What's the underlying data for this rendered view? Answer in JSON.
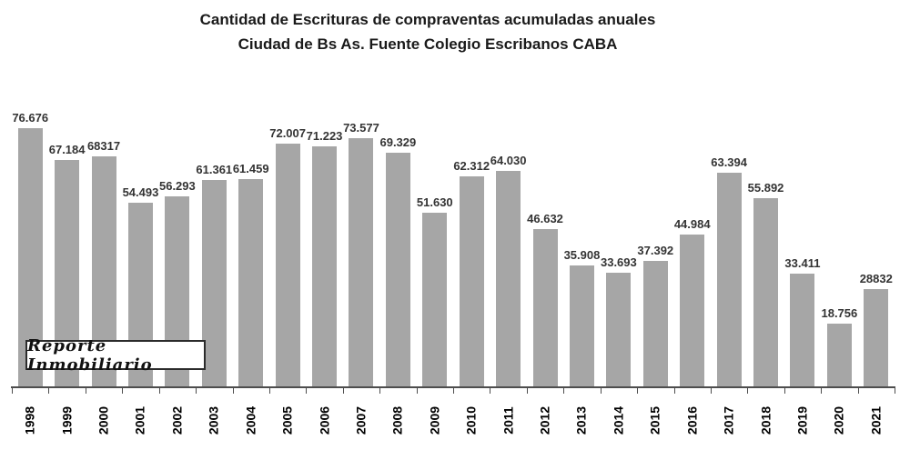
{
  "title": {
    "line1": "Cantidad de Escrituras de compraventas acumuladas anuales",
    "line2": "Ciudad de Bs As. Fuente Colegio Escribanos CABA"
  },
  "watermark": "Reporte Inmobiliario",
  "colors": {
    "bar": "#a6a6a6",
    "axis": "#4d4d4d",
    "title_text": "#1a1a1a",
    "value_label_text": "#333333",
    "year_label_text": "#000000"
  },
  "chart_data": {
    "type": "bar",
    "title": "Cantidad de Escrituras de compraventas acumuladas anuales Ciudad de Bs As. Fuente Colegio Escribanos CABA",
    "xlabel": "",
    "ylabel": "",
    "ylim": [
      0,
      80000
    ],
    "grid": false,
    "legend": false,
    "x_tick_label_rotation": 90,
    "categories": [
      "1998",
      "1999",
      "2000",
      "2001",
      "2002",
      "2003",
      "2004",
      "2005",
      "2006",
      "2007",
      "2008",
      "2009",
      "2010",
      "2011",
      "2012",
      "2013",
      "2014",
      "2015",
      "2016",
      "2017",
      "2018",
      "2019",
      "2020",
      "2021"
    ],
    "values": [
      76676,
      67184,
      68317,
      54493,
      56293,
      61361,
      61459,
      72007,
      71223,
      73577,
      69329,
      51630,
      62312,
      64030,
      46632,
      35908,
      33693,
      37392,
      44984,
      63394,
      55892,
      33411,
      18756,
      28832
    ],
    "value_labels": [
      "76.676",
      "67.184",
      "68317",
      "54.493",
      "56.293",
      "61.361",
      "61.459",
      "72.007",
      "71.223",
      "73.577",
      "69.329",
      "51.630",
      "62.312",
      "64.030",
      "46.632",
      "35.908",
      "33.693",
      "37.392",
      "44.984",
      "63.394",
      "55.892",
      "33.411",
      "18.756",
      "28832"
    ]
  }
}
